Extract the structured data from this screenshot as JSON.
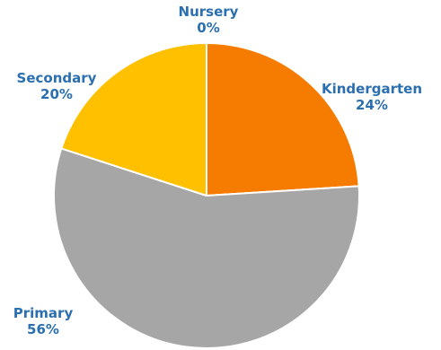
{
  "chart_data": {
    "type": "pie",
    "title": "",
    "slices": [
      {
        "label": "Nursery",
        "value": 0,
        "value_label": "0%",
        "color": "#f2a900"
      },
      {
        "label": "Kindergarten",
        "value": 24,
        "value_label": "24%",
        "color": "#f57c00"
      },
      {
        "label": "Primary",
        "value": 56,
        "value_label": "56%",
        "color": "#a6a6a6"
      },
      {
        "label": "Secondary",
        "value": 20,
        "value_label": "20%",
        "color": "#ffc000"
      }
    ],
    "label_color": "#2b6fb0",
    "slice_border_color": "#ffffff",
    "legend": "none"
  }
}
